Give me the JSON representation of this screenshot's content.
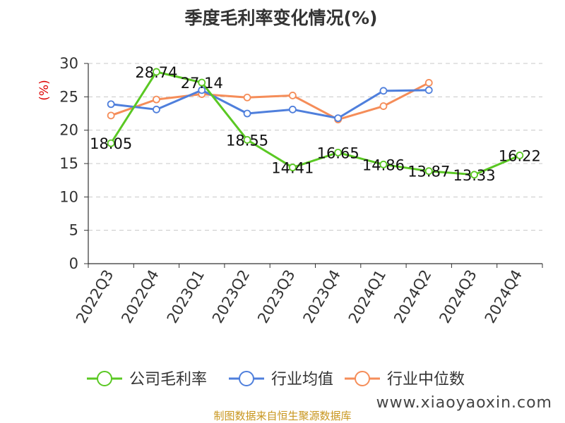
{
  "chart_data": {
    "type": "line",
    "title": "季度毛利率变化情况(%)",
    "ylabel": "(%)",
    "xlabel": "",
    "ylim": [
      0,
      30
    ],
    "yticks": [
      0,
      5,
      10,
      15,
      20,
      25,
      30
    ],
    "grid": true,
    "legend_position": "bottom",
    "categories": [
      "2022Q3",
      "2022Q4",
      "2023Q1",
      "2023Q2",
      "2023Q3",
      "2023Q4",
      "2024Q1",
      "2024Q2",
      "2024Q3",
      "2024Q4"
    ],
    "series": [
      {
        "name": "公司毛利率",
        "color": "#5ac823",
        "values": [
          18.05,
          28.74,
          27.14,
          18.55,
          14.41,
          16.65,
          14.86,
          13.87,
          13.33,
          16.22
        ],
        "data_labels": [
          "18.05",
          "28.74",
          "27.14",
          "18.55",
          "14.41",
          "16.65",
          "14.86",
          "13.87",
          "13.33",
          "16.22"
        ]
      },
      {
        "name": "行业均值",
        "color": "#4f7fdc",
        "values": [
          23.9,
          23.1,
          26.0,
          22.5,
          23.1,
          21.8,
          25.9,
          26.0,
          null,
          null
        ]
      },
      {
        "name": "行业中位数",
        "color": "#f58d59",
        "values": [
          22.2,
          24.6,
          25.4,
          24.9,
          25.2,
          21.6,
          23.6,
          27.1,
          null,
          null
        ]
      }
    ]
  },
  "footer": {
    "source": "制图数据来自恒生聚源数据库",
    "watermark": "www.xiaoyaoxin.com"
  }
}
